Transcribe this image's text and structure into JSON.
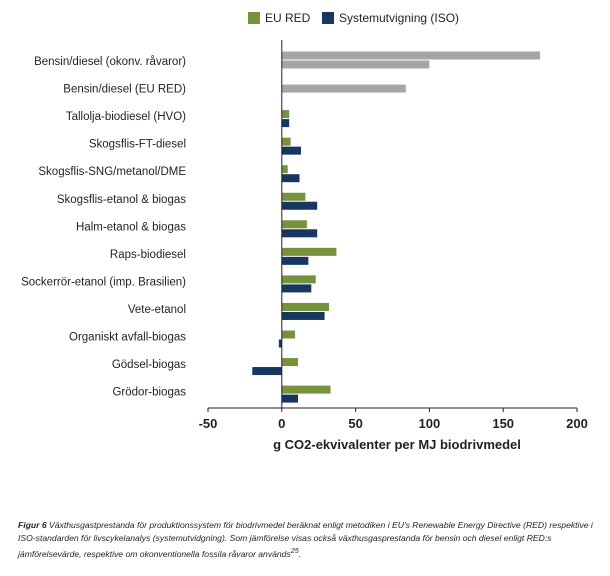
{
  "chart_data": {
    "type": "bar",
    "orientation": "horizontal",
    "title": "",
    "xlabel": "g CO2-ekvivalenter per MJ biodrivmedel",
    "ylabel": "",
    "xlim": [
      -50,
      200
    ],
    "xticks": [
      -50,
      0,
      50,
      100,
      150,
      200
    ],
    "grid": false,
    "legend_position": "top-center",
    "categories": [
      "Bensin/diesel (okonv. råvaror)",
      "Bensin/diesel (EU RED)",
      "Tallolja-biodiesel (HVO)",
      "Skogsflis-FT-diesel",
      "Skogsflis-SNG/metanol/DME",
      "Skogsflis-etanol & biogas",
      "Halm-etanol & biogas",
      "Raps-biodiesel",
      "Sockerrör-etanol (imp. Brasilien)",
      "Vete-etanol",
      "Organiskt avfall-biogas",
      "Gödsel-biogas",
      "Grödor-biogas"
    ],
    "series": [
      {
        "name": "EU RED",
        "color": "#76923c",
        "values": [
          null,
          null,
          5,
          6,
          4,
          16,
          17,
          37,
          23,
          32,
          9,
          11,
          33
        ]
      },
      {
        "name": "Systemutvigning (ISO)",
        "color": "#17375e",
        "values": [
          null,
          null,
          5,
          13,
          12,
          24,
          24,
          18,
          20,
          29,
          -2,
          -20,
          11
        ]
      }
    ],
    "reference_bars": {
      "color": "#a6a6a6",
      "values": [
        [
          175,
          100
        ],
        [
          84
        ],
        null,
        null,
        null,
        null,
        null,
        null,
        null,
        null,
        null,
        null,
        null
      ]
    }
  },
  "caption": {
    "figure_label": "Figur 6",
    "text": " Växthusgastprestanda för produktionssystem för biodrivmedel beräknat enligt metodiken i EU's Renewable Energy Directive (RED) respektive i ISO-standarden för livscykelanalys (systemutvidgning). Som jämförelse visas också växthusgasprestanda för bensin och diesel enligt RED:s jämförelsevärde, respektive om okonventionella fossila råvaror används",
    "footnote_ref": "25",
    "end": "."
  }
}
